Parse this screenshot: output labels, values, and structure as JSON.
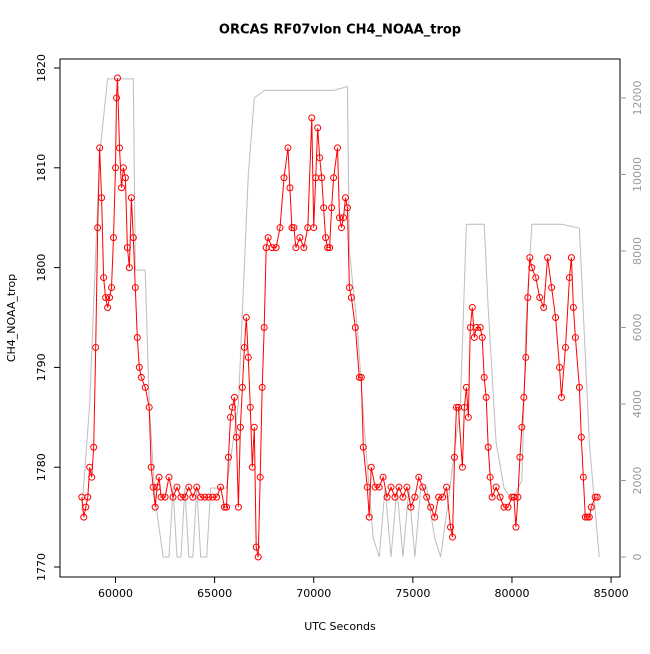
{
  "chart_data": {
    "type": "line",
    "title": "ORCAS RF07vlon CH4_NOAA_trop",
    "xlabel": "UTC Seconds",
    "ylabel": "CH4_NOAA_trop",
    "xlim": [
      57200,
      85450
    ],
    "xticks": [
      60000,
      65000,
      70000,
      75000,
      80000,
      85000
    ],
    "ylim": [
      1769,
      1820.9
    ],
    "yticks": [
      1770,
      1780,
      1790,
      1800,
      1810,
      1820
    ],
    "y2lim": [
      -523,
      13020
    ],
    "y2ticks": [
      0,
      2000,
      4000,
      6000,
      8000,
      10000,
      12000
    ],
    "series": [
      {
        "color": "#bebebe",
        "axis": "y2",
        "markers": false,
        "x": [
          58300,
          58700,
          59200,
          59600,
          60900,
          61000,
          61500,
          61700,
          62000,
          62400,
          62700,
          62900,
          63100,
          63300,
          63500,
          63700,
          63900,
          64100,
          64300,
          64600,
          64800,
          65000,
          65300,
          65600,
          66200,
          66700,
          67000,
          67500,
          69000,
          71000,
          71700,
          71800,
          72200,
          72600,
          73000,
          73300,
          73600,
          73900,
          74200,
          74500,
          74800,
          75100,
          75400,
          75700,
          76100,
          76400,
          76800,
          77400,
          77700,
          78600,
          78800,
          79200,
          79600,
          80000,
          80500,
          80700,
          81000,
          82500,
          83400,
          83900,
          84400
        ],
        "values": [
          1200,
          4000,
          10500,
          12500,
          12500,
          7500,
          7500,
          4000,
          1500,
          0,
          0,
          1800,
          0,
          0,
          1800,
          0,
          0,
          1800,
          0,
          0,
          1800,
          1800,
          1800,
          1800,
          4000,
          10000,
          12000,
          12200,
          12200,
          12200,
          12300,
          8000,
          6000,
          3000,
          500,
          0,
          1800,
          0,
          1800,
          0,
          1800,
          0,
          1800,
          1800,
          500,
          0,
          1500,
          4000,
          8700,
          8700,
          6500,
          3000,
          1800,
          1500,
          2000,
          6000,
          8700,
          8700,
          8600,
          3000,
          0
        ]
      },
      {
        "color": "#ff0000",
        "markers": true,
        "x": [
          58300,
          58400,
          58500,
          58600,
          58700,
          58800,
          58900,
          59000,
          59100,
          59200,
          59300,
          59400,
          59500,
          59600,
          59700,
          59800,
          59900,
          60000,
          60050,
          60100,
          60200,
          60300,
          60400,
          60500,
          60600,
          60700,
          60800,
          60900,
          61000,
          61100,
          61200,
          61300,
          61500,
          61700,
          61800,
          61900,
          62000,
          62100,
          62200,
          62300,
          62500,
          62700,
          62900,
          63100,
          63300,
          63500,
          63700,
          63900,
          64100,
          64300,
          64500,
          64700,
          64900,
          65100,
          65300,
          65500,
          65600,
          65700,
          65800,
          65900,
          66000,
          66100,
          66200,
          66300,
          66400,
          66500,
          66600,
          66700,
          66800,
          66900,
          67000,
          67100,
          67200,
          67300,
          67400,
          67500,
          67600,
          67700,
          67900,
          68100,
          68300,
          68500,
          68700,
          68800,
          68900,
          69000,
          69100,
          69300,
          69500,
          69700,
          69900,
          70000,
          70100,
          70200,
          70300,
          70400,
          70500,
          70600,
          70700,
          70800,
          70900,
          71000,
          71200,
          71300,
          71400,
          71500,
          71600,
          71700,
          71800,
          71900,
          72100,
          72300,
          72400,
          72500,
          72700,
          72800,
          72900,
          73100,
          73300,
          73500,
          73700,
          73900,
          74100,
          74300,
          74500,
          74700,
          74900,
          75100,
          75300,
          75500,
          75700,
          75900,
          76100,
          76300,
          76500,
          76700,
          76900,
          77000,
          77100,
          77200,
          77300,
          77500,
          77600,
          77700,
          77800,
          77900,
          78000,
          78100,
          78200,
          78400,
          78500,
          78600,
          78700,
          78800,
          78900,
          79000,
          79200,
          79400,
          79600,
          79800,
          80000,
          80100,
          80200,
          80300,
          80400,
          80500,
          80600,
          80700,
          80800,
          80900,
          81000,
          81200,
          81400,
          81600,
          81800,
          82000,
          82200,
          82400,
          82500,
          82700,
          82900,
          83000,
          83100,
          83200,
          83400,
          83500,
          83600,
          83700,
          83800,
          83900,
          84000,
          84200,
          84300
        ],
        "values": [
          1777,
          1775,
          1776,
          1777,
          1780,
          1779,
          1782,
          1792,
          1804,
          1812,
          1807,
          1799,
          1797,
          1796,
          1797,
          1798,
          1803,
          1810,
          1817,
          1819,
          1812,
          1808,
          1810,
          1809,
          1802,
          1800,
          1807,
          1803,
          1798,
          1793,
          1790,
          1789,
          1788,
          1786,
          1780,
          1778,
          1776,
          1778,
          1779,
          1777,
          1777,
          1779,
          1777,
          1778,
          1777,
          1777,
          1778,
          1777,
          1778,
          1777,
          1777,
          1777,
          1777,
          1777,
          1778,
          1776,
          1776,
          1781,
          1785,
          1786,
          1787,
          1783,
          1776,
          1784,
          1788,
          1792,
          1795,
          1791,
          1786,
          1780,
          1784,
          1772,
          1771,
          1779,
          1788,
          1794,
          1802,
          1803,
          1802,
          1802,
          1804,
          1809,
          1812,
          1808,
          1804,
          1804,
          1802,
          1803,
          1802,
          1804,
          1815,
          1804,
          1809,
          1814,
          1811,
          1809,
          1806,
          1803,
          1802,
          1802,
          1806,
          1809,
          1812,
          1805,
          1804,
          1805,
          1807,
          1806,
          1798,
          1797,
          1794,
          1789,
          1789,
          1782,
          1778,
          1775,
          1780,
          1778,
          1778,
          1779,
          1777,
          1778,
          1777,
          1778,
          1777,
          1778,
          1776,
          1777,
          1779,
          1778,
          1777,
          1776,
          1775,
          1777,
          1777,
          1778,
          1774,
          1773,
          1781,
          1786,
          1786,
          1780,
          1786,
          1788,
          1785,
          1794,
          1796,
          1793,
          1794,
          1794,
          1793,
          1789,
          1787,
          1782,
          1779,
          1777,
          1778,
          1777,
          1776,
          1776,
          1777,
          1777,
          1774,
          1777,
          1781,
          1784,
          1787,
          1791,
          1797,
          1801,
          1800,
          1799,
          1797,
          1796,
          1801,
          1798,
          1795,
          1790,
          1787,
          1792,
          1799,
          1801,
          1796,
          1793,
          1788,
          1783,
          1779,
          1775,
          1775,
          1775,
          1776,
          1777,
          1777
        ]
      }
    ]
  }
}
